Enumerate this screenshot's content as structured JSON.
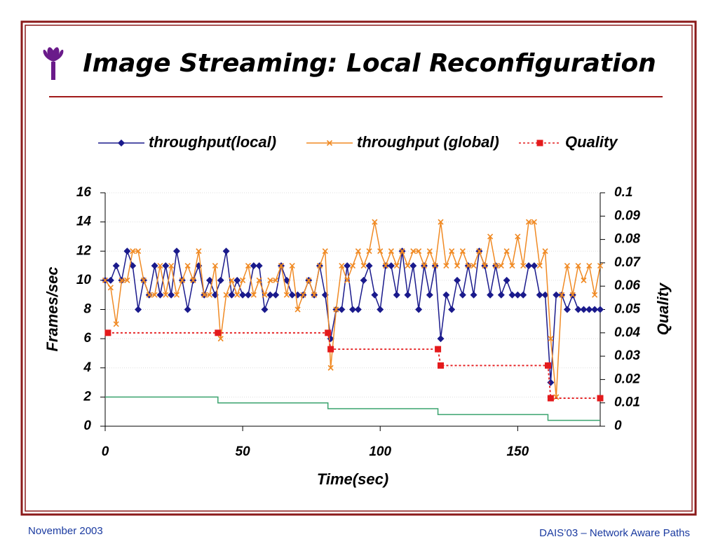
{
  "chart_data": {
    "type": "line",
    "title": "Image Streaming: Local Reconfiguration",
    "xlabel": "Time(sec)",
    "ylabel": "Frames/sec",
    "y2label": "Quality",
    "xlim": [
      0,
      180
    ],
    "xticks": [
      0,
      50,
      100,
      150
    ],
    "ylim": [
      0,
      16
    ],
    "yticks": [
      0,
      2,
      4,
      6,
      8,
      10,
      12,
      14,
      16
    ],
    "y2lim": [
      0,
      0.1
    ],
    "y2ticks": [
      0,
      0.01,
      0.02,
      0.03,
      0.04,
      0.05,
      0.06,
      0.07,
      0.08,
      0.09,
      0.1
    ],
    "grid": true,
    "legend": "top",
    "x": [
      0,
      2,
      4,
      6,
      8,
      10,
      12,
      14,
      16,
      18,
      20,
      22,
      24,
      26,
      28,
      30,
      32,
      34,
      36,
      38,
      40,
      42,
      44,
      46,
      48,
      50,
      52,
      54,
      56,
      58,
      60,
      62,
      64,
      66,
      68,
      70,
      72,
      74,
      76,
      78,
      80,
      82,
      84,
      86,
      88,
      90,
      92,
      94,
      96,
      98,
      100,
      102,
      104,
      106,
      108,
      110,
      112,
      114,
      116,
      118,
      120,
      122,
      124,
      126,
      128,
      130,
      132,
      134,
      136,
      138,
      140,
      142,
      144,
      146,
      148,
      150,
      152,
      154,
      156,
      158,
      160,
      162,
      164,
      166,
      168,
      170,
      172,
      174,
      176,
      178,
      180
    ],
    "series": [
      {
        "name": "throughput(local)",
        "color": "#1a1a8c",
        "marker": "diamond",
        "values": [
          10,
          10,
          11,
          10,
          12,
          11,
          8,
          10,
          9,
          11,
          9,
          11,
          9,
          12,
          10,
          8,
          10,
          11,
          9,
          10,
          9,
          10,
          12,
          9,
          10,
          9,
          9,
          11,
          11,
          8,
          9,
          9,
          11,
          10,
          9,
          9,
          9,
          10,
          9,
          11,
          9,
          6,
          8,
          8,
          11,
          8,
          8,
          10,
          11,
          9,
          8,
          11,
          11,
          9,
          12,
          9,
          11,
          8,
          11,
          9,
          11,
          6,
          9,
          8,
          10,
          9,
          11,
          9,
          12,
          11,
          9,
          11,
          9,
          10,
          9,
          9,
          9,
          11,
          11,
          9,
          9,
          3,
          9,
          9,
          8,
          9,
          8,
          8,
          8,
          8,
          8
        ]
      },
      {
        "name": "throughput (global)",
        "color": "#f08a24",
        "marker": "cross",
        "values": [
          10,
          9.5,
          7,
          10,
          10,
          12,
          12,
          10,
          9,
          9,
          11,
          9,
          11,
          9,
          10,
          11,
          10,
          12,
          9,
          9,
          11,
          6,
          9,
          10,
          9,
          10,
          11,
          9,
          10,
          9,
          10,
          10,
          11,
          9,
          11,
          8,
          9,
          10,
          9,
          11,
          12,
          4,
          8,
          11,
          10,
          11,
          12,
          11,
          12,
          14,
          12,
          11,
          12,
          11,
          12,
          11,
          12,
          12,
          11,
          12,
          11,
          14,
          11,
          12,
          11,
          12,
          11,
          11,
          12,
          11,
          13,
          11,
          11,
          12,
          11,
          13,
          11,
          14,
          14,
          11,
          12,
          6,
          2,
          9,
          11,
          9,
          11,
          10,
          11,
          9,
          11
        ]
      },
      {
        "name": "Quality",
        "color": "#e41a1c",
        "marker": "square",
        "dash": true,
        "axis": "y2",
        "x": [
          1,
          41,
          81,
          82,
          121,
          122,
          161,
          162,
          180
        ],
        "values": [
          0.04,
          0.04,
          0.04,
          0.033,
          0.033,
          0.026,
          0.026,
          0.012,
          0.012
        ]
      },
      {
        "color": "#3aa36e",
        "marker": "none",
        "x": [
          0,
          41,
          41,
          81,
          81,
          121,
          121,
          161,
          161,
          180
        ],
        "values": [
          2,
          2,
          1.6,
          1.6,
          1.2,
          1.2,
          0.8,
          0.8,
          0.4,
          0.4
        ]
      }
    ]
  },
  "footer": {
    "date": "November 2003",
    "event": "DAIS’03 – Network Aware Paths"
  }
}
